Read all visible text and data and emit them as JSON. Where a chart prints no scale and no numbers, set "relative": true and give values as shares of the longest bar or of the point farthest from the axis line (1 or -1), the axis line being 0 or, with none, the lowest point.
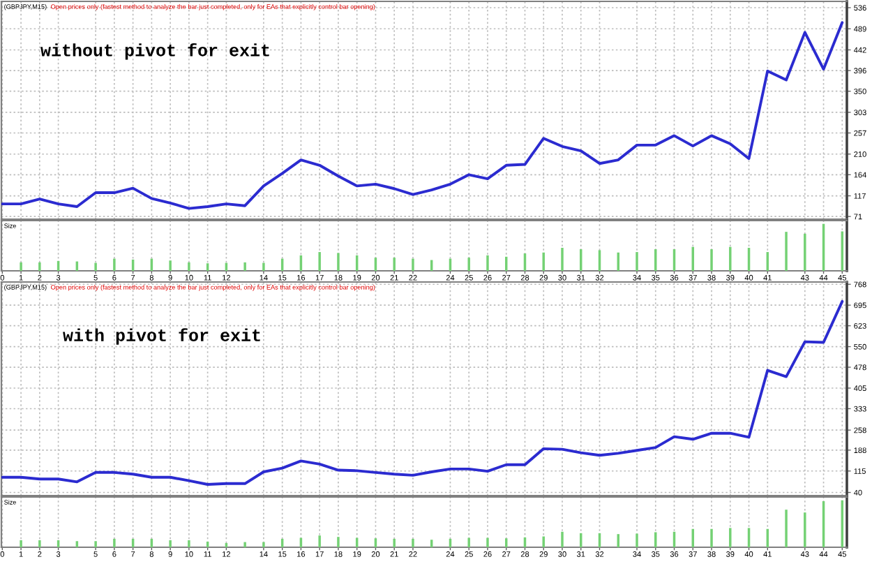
{
  "chart_data": [
    {
      "type": "line",
      "title": "(GBPJPY,M15)",
      "subtitle": "Open prices only (fastest method to analyze the bar just completed, only for EAs that explicitly control bar opening)",
      "annotations": [
        "without pivot for exit"
      ],
      "x": [
        0,
        1,
        2,
        3,
        4,
        5,
        6,
        7,
        8,
        9,
        10,
        11,
        12,
        13,
        14,
        15,
        16,
        17,
        18,
        19,
        20,
        21,
        22,
        23,
        24,
        25,
        26,
        27,
        28,
        29,
        30,
        31,
        32,
        33,
        34,
        35,
        36,
        37,
        38,
        39,
        40,
        41,
        42,
        43,
        44,
        45
      ],
      "series": [
        {
          "color": "#2b2bd0",
          "values": [
            99,
            99,
            110,
            99,
            93,
            124,
            124,
            134,
            111,
            101,
            89,
            93,
            99,
            95,
            139,
            167,
            197,
            185,
            161,
            139,
            143,
            133,
            120,
            130,
            143,
            164,
            155,
            185,
            187,
            245,
            227,
            217,
            189,
            197,
            230,
            230,
            251,
            228,
            251,
            233,
            200,
            395,
            375,
            481,
            399,
            503
          ]
        }
      ],
      "xlim": [
        -0.05,
        45.25
      ],
      "xticks": [
        0,
        1,
        2,
        3,
        5,
        6,
        7,
        8,
        9,
        10,
        11,
        12,
        14,
        15,
        16,
        17,
        18,
        19,
        20,
        21,
        22,
        24,
        25,
        26,
        27,
        28,
        29,
        30,
        31,
        32,
        34,
        35,
        36,
        37,
        38,
        39,
        40,
        41,
        43,
        44,
        45
      ],
      "ylim": [
        65,
        550
      ],
      "yticks": [
        71,
        117,
        164,
        210,
        257,
        303,
        350,
        396,
        442,
        489,
        536
      ],
      "grid": true,
      "tick_labels": "y"
    },
    {
      "type": "bar",
      "title": "Size",
      "relative": true,
      "x": [
        1,
        2,
        3,
        4,
        5,
        6,
        7,
        8,
        9,
        10,
        11,
        12,
        13,
        14,
        15,
        16,
        17,
        18,
        19,
        20,
        21,
        22,
        23,
        24,
        25,
        26,
        27,
        28,
        29,
        30,
        31,
        32,
        33,
        34,
        35,
        36,
        37,
        38,
        39,
        40,
        41,
        42,
        43,
        44,
        45
      ],
      "values": [
        0.18,
        0.18,
        0.21,
        0.2,
        0.17,
        0.26,
        0.24,
        0.26,
        0.22,
        0.18,
        0.16,
        0.17,
        0.18,
        0.17,
        0.26,
        0.33,
        0.4,
        0.38,
        0.33,
        0.28,
        0.28,
        0.26,
        0.23,
        0.26,
        0.28,
        0.33,
        0.3,
        0.37,
        0.39,
        0.49,
        0.46,
        0.44,
        0.39,
        0.4,
        0.46,
        0.46,
        0.51,
        0.46,
        0.51,
        0.49,
        0.4,
        0.83,
        0.79,
        1,
        0.84
      ],
      "color": "#74d174",
      "xlim": [
        -0.05,
        45.25
      ],
      "xticks": [
        0,
        1,
        2,
        3,
        5,
        6,
        7,
        8,
        9,
        10,
        11,
        12,
        14,
        15,
        16,
        17,
        18,
        19,
        20,
        21,
        22,
        24,
        25,
        26,
        27,
        28,
        29,
        30,
        31,
        32,
        34,
        35,
        36,
        37,
        38,
        39,
        40,
        41,
        43,
        44,
        45
      ],
      "grid": "x",
      "tick_labels": "x"
    },
    {
      "type": "line",
      "title": "(GBPJPY,M15)",
      "subtitle": "Open prices only (fastest method to analyze the bar just completed, only for EAs that explicitly control bar opening)",
      "annotations": [
        "with pivot for exit"
      ],
      "x": [
        0,
        1,
        2,
        3,
        4,
        5,
        6,
        7,
        8,
        9,
        10,
        11,
        12,
        13,
        14,
        15,
        16,
        17,
        18,
        19,
        20,
        21,
        22,
        23,
        24,
        25,
        26,
        27,
        28,
        29,
        30,
        31,
        32,
        33,
        34,
        35,
        36,
        37,
        38,
        39,
        40,
        41,
        42,
        43,
        44,
        45
      ],
      "series": [
        {
          "color": "#2b2bd0",
          "values": [
            93,
            93,
            87,
            87,
            77,
            110,
            110,
            104,
            93,
            93,
            81,
            68,
            71,
            71,
            112,
            125,
            150,
            139,
            118,
            116,
            110,
            104,
            100,
            112,
            122,
            122,
            114,
            137,
            137,
            193,
            191,
            179,
            170,
            177,
            187,
            197,
            235,
            226,
            247,
            247,
            233,
            467,
            445,
            567,
            565,
            708
          ]
        }
      ],
      "xlim": [
        -0.05,
        45.25
      ],
      "xticks": [
        0,
        1,
        2,
        3,
        5,
        6,
        7,
        8,
        9,
        10,
        11,
        12,
        14,
        15,
        16,
        17,
        18,
        19,
        20,
        21,
        22,
        24,
        25,
        26,
        27,
        28,
        29,
        30,
        31,
        32,
        34,
        35,
        36,
        37,
        38,
        39,
        40,
        41,
        43,
        44,
        45
      ],
      "ylim": [
        29,
        776
      ],
      "yticks": [
        40,
        115,
        188,
        258,
        333,
        405,
        478,
        550,
        623,
        695,
        768
      ],
      "grid": true,
      "tick_labels": "y"
    },
    {
      "type": "bar",
      "title": "Size",
      "relative": true,
      "x": [
        1,
        2,
        3,
        4,
        5,
        6,
        7,
        8,
        9,
        10,
        11,
        12,
        13,
        14,
        15,
        16,
        17,
        18,
        19,
        20,
        21,
        22,
        23,
        24,
        25,
        26,
        27,
        28,
        29,
        30,
        31,
        32,
        33,
        34,
        35,
        36,
        37,
        38,
        39,
        40,
        41,
        42,
        43,
        44,
        45
      ],
      "values": [
        0.15,
        0.15,
        0.15,
        0.13,
        0.13,
        0.18,
        0.18,
        0.18,
        0.15,
        0.15,
        0.12,
        0.09,
        0.11,
        0.11,
        0.18,
        0.2,
        0.25,
        0.22,
        0.2,
        0.19,
        0.18,
        0.18,
        0.16,
        0.18,
        0.2,
        0.2,
        0.19,
        0.21,
        0.23,
        0.33,
        0.3,
        0.3,
        0.28,
        0.29,
        0.32,
        0.33,
        0.39,
        0.39,
        0.41,
        0.41,
        0.39,
        0.8,
        0.74,
        0.98,
        1
      ],
      "color": "#74d174",
      "xlim": [
        -0.05,
        45.25
      ],
      "xticks": [
        0,
        1,
        2,
        3,
        5,
        6,
        7,
        8,
        9,
        10,
        11,
        12,
        14,
        15,
        16,
        17,
        18,
        19,
        20,
        21,
        22,
        24,
        25,
        26,
        27,
        28,
        29,
        30,
        31,
        32,
        34,
        35,
        36,
        37,
        38,
        39,
        40,
        41,
        43,
        44,
        45
      ],
      "grid": "x",
      "tick_labels": "x"
    }
  ]
}
